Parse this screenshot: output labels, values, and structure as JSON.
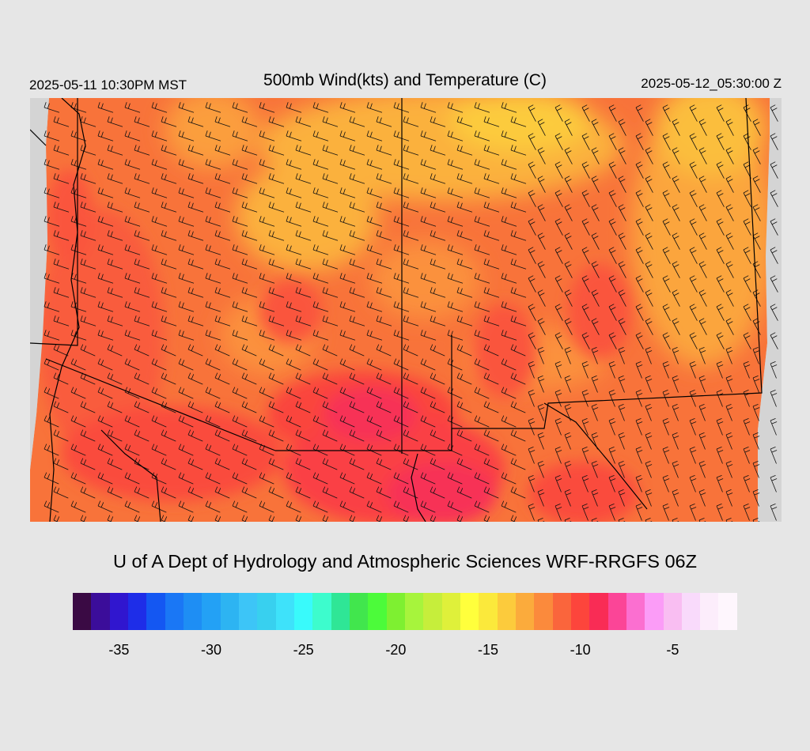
{
  "header": {
    "local_time": "2025-05-11 10:30PM MST",
    "title": "500mb Wind(kts) and Temperature (C)",
    "utc_time": "2025-05-12_05:30:00 Z"
  },
  "map": {
    "field": "500mb temperature (C) with wind barbs (kts)",
    "colors": {
      "background": "#e6e6e6",
      "no_data": "#d4d4d4",
      "border_lines": "#000000",
      "terrain_contours": "#9a8a78"
    }
  },
  "credit": "U of A Dept of Hydrology and Atmospheric Sciences WRF-RRGFS 06Z",
  "colorbar": {
    "min": -37,
    "max": -1,
    "step": 1,
    "tick_labels": [
      "-35",
      "-30",
      "-25",
      "-20",
      "-15",
      "-10",
      "-5"
    ],
    "tick_values": [
      -35,
      -30,
      -25,
      -20,
      -15,
      -10,
      -5
    ],
    "colors": [
      "#3a0a44",
      "#3b0d9a",
      "#3016cf",
      "#1e2de8",
      "#1457f2",
      "#1a77f5",
      "#1e8ef4",
      "#23a1f5",
      "#2db4f2",
      "#3dc5f7",
      "#38d0ef",
      "#3ee2fa",
      "#39fafb",
      "#3dfccd",
      "#2fe696",
      "#41e64d",
      "#4cfb3a",
      "#7ef031",
      "#a7f43c",
      "#c6ee3b",
      "#dff03a",
      "#ffff3c",
      "#fbe93b",
      "#fccb3c",
      "#fbab3c",
      "#fb8a3c",
      "#fa653c",
      "#fd453c",
      "#f92c55",
      "#fb4597",
      "#fb6fd0",
      "#fb9cf7",
      "#f9bef2",
      "#f9dafb",
      "#fcedfb",
      "#fef6fd"
    ]
  }
}
